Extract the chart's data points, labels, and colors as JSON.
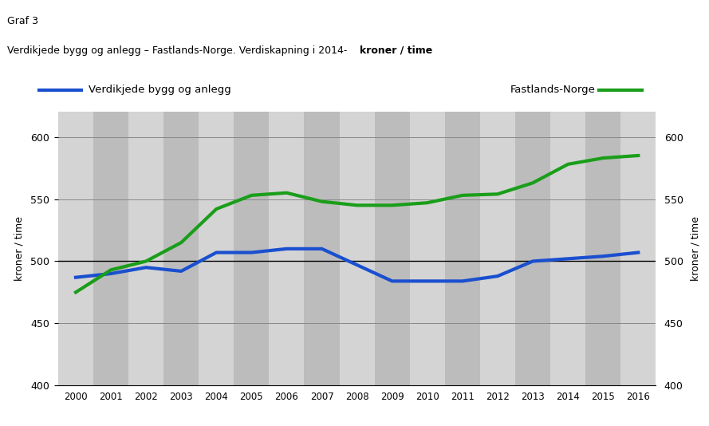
{
  "years": [
    2000,
    2001,
    2002,
    2003,
    2004,
    2005,
    2006,
    2007,
    2008,
    2009,
    2010,
    2011,
    2012,
    2013,
    2014,
    2015,
    2016
  ],
  "blue_values": [
    487,
    490,
    495,
    492,
    507,
    507,
    510,
    510,
    497,
    484,
    484,
    484,
    488,
    500,
    502,
    504,
    507
  ],
  "green_values": [
    475,
    493,
    500,
    515,
    542,
    553,
    555,
    548,
    545,
    545,
    547,
    553,
    554,
    563,
    578,
    583,
    585
  ],
  "blue_color": "#1a4fcf",
  "green_color": "#1a9e1a",
  "fig_bg_color": "#ffffff",
  "plot_bg_color": "#c8c8c8",
  "stripe_color_light": "#d4d4d4",
  "stripe_color_dark": "#bcbcbc",
  "title_line1": "Graf 3",
  "title_line2_normal": "Verdikjede bygg og anlegg – Fastlands-Norge. Verdiskapning i 2014- ",
  "title_line2_bold": "kroner / time",
  "legend_blue": "Verdikjede bygg og anlegg",
  "legend_green": "Fastlands-Norge",
  "ylabel_left": "kroner / time",
  "ylabel_right": "kroner / time",
  "ylim": [
    400,
    620
  ],
  "yticks": [
    400,
    450,
    500,
    550,
    600
  ],
  "line_width": 3.0,
  "hline_y": 500,
  "hline_color": "#000000",
  "grid_color": "#888888",
  "bottom_line_color": "#000000"
}
